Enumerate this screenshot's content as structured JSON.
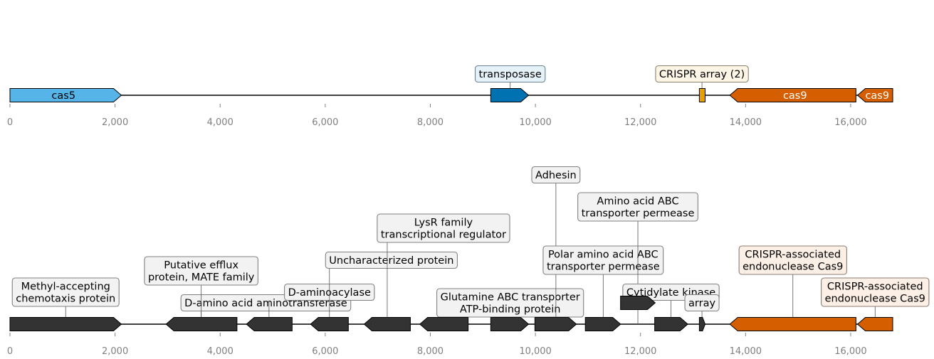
{
  "axis": {
    "min": 0,
    "max": 16800,
    "ticks": [
      0,
      2000,
      4000,
      6000,
      8000,
      10000,
      12000,
      14000,
      16000
    ],
    "tick_labels": [
      "0",
      "2,000",
      "4,000",
      "6,000",
      "8,000",
      "10,000",
      "12,000",
      "14,000",
      "16,000"
    ]
  },
  "colors": {
    "cas5": "#56b4e9",
    "transposase": "#0072b2",
    "crispr_array": "#e69f00",
    "cas9": "#d55e00",
    "generic": "#333333",
    "tick_text": "#808080",
    "callout_bg": "#f2f2f2",
    "callout_edge": "#808080"
  },
  "tracks": [
    {
      "name": "top",
      "features": [
        {
          "start": 0,
          "end": 2120,
          "strand": 1,
          "color": "#56b4e9",
          "label": "cas5",
          "label_color": "#000000"
        },
        {
          "start": 9150,
          "end": 9870,
          "strand": 1,
          "color": "#0072b2",
          "label": ""
        },
        {
          "start": 13120,
          "end": 13230,
          "strand": 0,
          "color": "#e69f00",
          "label": ""
        },
        {
          "start": 13700,
          "end": 16100,
          "strand": -1,
          "color": "#d55e00",
          "label": "cas9",
          "label_color": "#ffffff"
        },
        {
          "start": 16130,
          "end": 16800,
          "strand": -1,
          "color": "#d55e00",
          "label": "cas9",
          "label_color": "#ffffff"
        }
      ],
      "callouts": [
        {
          "lines": [
            "transposase"
          ],
          "at": 9520,
          "box_x": 9520,
          "level": 0,
          "bg": "#e6f2fa",
          "edge": "#6a8191"
        },
        {
          "lines": [
            "CRISPR array (2)"
          ],
          "at": 13170,
          "box_x": 13170,
          "level": 0,
          "bg": "#fdf5e6",
          "edge": "#8c8070"
        }
      ]
    },
    {
      "name": "bottom",
      "features": [
        {
          "start": 0,
          "end": 2120,
          "strand": 1,
          "color": "#333333"
        },
        {
          "start": 2970,
          "end": 4320,
          "strand": -1,
          "color": "#333333"
        },
        {
          "start": 4500,
          "end": 5370,
          "strand": -1,
          "color": "#333333"
        },
        {
          "start": 5720,
          "end": 6440,
          "strand": -1,
          "color": "#333333"
        },
        {
          "start": 6740,
          "end": 7620,
          "strand": -1,
          "color": "#333333"
        },
        {
          "start": 7800,
          "end": 8720,
          "strand": -1,
          "color": "#333333"
        },
        {
          "start": 9150,
          "end": 9870,
          "strand": 1,
          "color": "#333333"
        },
        {
          "start": 9990,
          "end": 10780,
          "strand": 1,
          "color": "#333333"
        },
        {
          "start": 10950,
          "end": 11620,
          "strand": 1,
          "color": "#333333"
        },
        {
          "start": 11620,
          "end": 12280,
          "strand": 1,
          "color": "#333333",
          "row": 1
        },
        {
          "start": 12270,
          "end": 12900,
          "strand": 1,
          "color": "#333333"
        },
        {
          "start": 13120,
          "end": 13230,
          "strand": 1,
          "color": "#333333"
        },
        {
          "start": 13700,
          "end": 16100,
          "strand": -1,
          "color": "#d55e00"
        },
        {
          "start": 16130,
          "end": 16800,
          "strand": -1,
          "color": "#d55e00"
        }
      ],
      "callouts": [
        {
          "lines": [
            "Methyl-accepting",
            "chemotaxis protein"
          ],
          "at": 1060,
          "box_x": 1060,
          "level": 1
        },
        {
          "lines": [
            "D-amino acid aminotransferase"
          ],
          "at": 3640,
          "box_x": 4870,
          "level": 0
        },
        {
          "lines": [
            "Putative efflux",
            "protein, MATE family"
          ],
          "at": 3640,
          "box_x": 3640,
          "level": 2
        },
        {
          "lines": [
            "D-aminoacylase"
          ],
          "at": 4930,
          "box_x": 6080,
          "level": 1
        },
        {
          "lines": [
            "Uncharacterized protein"
          ],
          "at": 6080,
          "box_x": 7260,
          "level": 3
        },
        {
          "lines": [
            "LysR family",
            "transcriptional regulator"
          ],
          "at": 7180,
          "box_x": 8250,
          "level": 4
        },
        {
          "lines": [
            "Glutamine ABC transporter",
            "ATP-binding protein"
          ],
          "at": 8250,
          "box_x": 9520,
          "level": 0
        },
        {
          "lines": [
            "Adhesin"
          ],
          "at": 10390,
          "box_x": 10390,
          "level": 6
        },
        {
          "lines": [
            "Polar amino acid ABC",
            "transporter permease"
          ],
          "at": 11290,
          "box_x": 11290,
          "level": 3
        },
        {
          "lines": [
            "Amino acid ABC",
            "transporter permease"
          ],
          "at": 11950,
          "box_x": 11950,
          "level": 5
        },
        {
          "lines": [
            "Cytidylate kinase"
          ],
          "at": 12580,
          "box_x": 12580,
          "level": 1
        },
        {
          "lines": [
            "array"
          ],
          "at": 13170,
          "box_x": 13170,
          "level": 0
        },
        {
          "lines": [
            "CRISPR-associated",
            "endonuclease Cas9"
          ],
          "at": 14900,
          "box_x": 14900,
          "level": 3,
          "bg": "#fcefe5",
          "edge": "#8c7d72"
        },
        {
          "lines": [
            "CRISPR-associated",
            "endonuclease Cas9"
          ],
          "at": 16465,
          "box_x": 16465,
          "level": 1,
          "bg": "#fcefe5",
          "edge": "#8c7d72"
        }
      ]
    }
  ]
}
